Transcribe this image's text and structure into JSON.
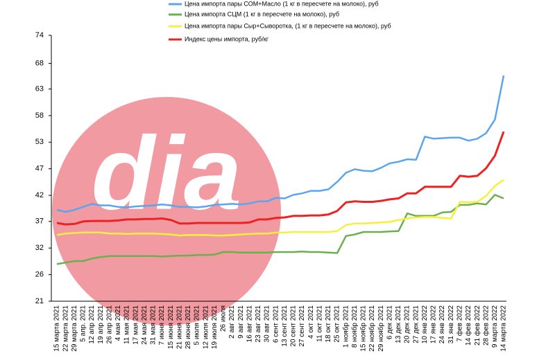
{
  "chart_data": {
    "type": "line",
    "watermark": "dia",
    "categories": [
      "15 марта 2021",
      "22 марта 2021",
      "29 марта 2021",
      "5 апр. 2021",
      "12 апр 2021",
      "19 апр 2021",
      "26 апр 2021",
      "4 мая 2021",
      "11 мая 2021",
      "17 мая 2021",
      "24 мая 2021",
      "31 мая 2021",
      "7 июня 2021",
      "15 июня 2021",
      "21 июня 2021",
      "28 июня 2021",
      "5 июля 2021",
      "12 июля 2021",
      "19 июля 2021",
      "26 июля",
      "2 авг 2021",
      "9 авг 2021",
      "16 авг 2021",
      "23 авг 2021",
      "30 авг 2021",
      "6 сент 2021",
      "13 сент 2021",
      "20 сент 2021",
      "27 сент 2021",
      "4 окт 2021",
      "11 окт 2021",
      "18 окт 2021",
      "25 окт 2021",
      "1 ноябр 2021",
      "8 ноябр 2021",
      "15 ноябр 2021",
      "22 ноябр 2021",
      "29 ноябр 2021",
      "6 дек 2021",
      "13 дек 2021",
      "20 дек 2021",
      "27 дек 2021",
      "10 янв 2022",
      "17 янв 2022",
      "24 янв 2022",
      "31 янв 2022",
      "7 фев 2022",
      "14 фев 2022",
      "21 фев 2022",
      "28 фев 2022",
      "9 марта 2022",
      "14 марта 2022"
    ],
    "series": [
      {
        "name": "Цена импорта пары СОМ+Масло  (1 кг в пересчете на молоко), руб",
        "color": "#5aa5f0",
        "values": [
          39.2,
          38.8,
          39.2,
          39.8,
          40.4,
          40.1,
          40.1,
          39.8,
          39.7,
          39.9,
          40,
          40.1,
          40.3,
          40.1,
          39.8,
          39.8,
          39.7,
          39.9,
          40.2,
          40.3,
          40.4,
          40.3,
          40.5,
          40.9,
          40.9,
          41.6,
          41.5,
          42.2,
          42.5,
          43,
          43,
          43.3,
          44.8,
          46.6,
          47.3,
          47,
          46.9,
          47.6,
          48.5,
          48.8,
          49.3,
          49.2,
          53.8,
          53.4,
          53.5,
          53.6,
          53.6,
          53,
          53.4,
          54.5,
          57.2,
          66
        ]
      },
      {
        "name": "Цена импорта СЦМ  (1 кг в пересчете на молоко), руб",
        "color": "#6ab04c",
        "values": [
          28.4,
          28.7,
          29,
          29,
          29.5,
          29.8,
          30,
          30,
          30,
          30,
          30,
          30,
          29.9,
          30,
          30.1,
          30.1,
          30.2,
          30.2,
          30.3,
          30.8,
          30.8,
          30.7,
          30.7,
          30.7,
          30.7,
          30.8,
          30.8,
          30.8,
          30.9,
          30.8,
          30.8,
          30.7,
          30.6,
          34,
          34.3,
          34.8,
          34.8,
          34.8,
          34.9,
          35,
          38.5,
          38,
          38,
          38,
          38.7,
          38.8,
          40.2,
          40.2,
          40.5,
          40.3,
          42.2,
          41.5
        ]
      },
      {
        "name": "Цена импорта пары Сыр+Сыворотка,  (1 кг в пересчете на молоко), руб",
        "color": "#f5f03c",
        "values": [
          34.2,
          34.5,
          34.6,
          34.7,
          34.7,
          34.7,
          34.5,
          34.5,
          34.4,
          34.5,
          34.5,
          34.5,
          34.4,
          34.3,
          34.1,
          34.2,
          34.2,
          34.2,
          34.1,
          34.1,
          34.2,
          34.3,
          34.4,
          34.5,
          34.5,
          34.7,
          34.7,
          34.8,
          34.8,
          34.8,
          34.8,
          34.8,
          35,
          36.2,
          36.5,
          36.5,
          36.6,
          36.7,
          36.8,
          37.2,
          37.5,
          37.7,
          37.8,
          37.8,
          37.6,
          37.5,
          40.8,
          40.7,
          40.8,
          42,
          44,
          45.2
        ]
      },
      {
        "name": "Индекс цены импорта, руб/кг",
        "color": "#ee2222",
        "values": [
          36.6,
          36.3,
          36.4,
          36.9,
          37,
          37,
          37,
          37.1,
          37.3,
          37.3,
          37.4,
          37.4,
          37.5,
          37.2,
          36.5,
          36.5,
          36.6,
          36.6,
          36.6,
          36.6,
          36.6,
          36.6,
          36.7,
          37.3,
          37.3,
          37.6,
          37.7,
          38,
          38,
          38.1,
          38.1,
          38.3,
          39,
          40.7,
          40.9,
          40.8,
          40.8,
          41,
          41.3,
          41.5,
          42.5,
          42.5,
          43.8,
          43.8,
          43.8,
          43.8,
          46,
          45.8,
          46,
          47.5,
          50,
          54.8
        ]
      }
    ],
    "ylim": [
      21,
      74
    ],
    "yticks": [
      21,
      {
        "value": 26.3,
        "label": "26"
      },
      {
        "value": 31.6,
        "label": "32"
      },
      {
        "value": 36.9,
        "label": "37"
      },
      {
        "value": 42.1,
        "label": "42"
      },
      {
        "value": 47.4,
        "label": "47"
      },
      {
        "value": 52.7,
        "label": "53"
      },
      58,
      {
        "value": 63.3,
        "label": "63"
      },
      {
        "value": 68.4,
        "label": "68"
      },
      74
    ]
  }
}
